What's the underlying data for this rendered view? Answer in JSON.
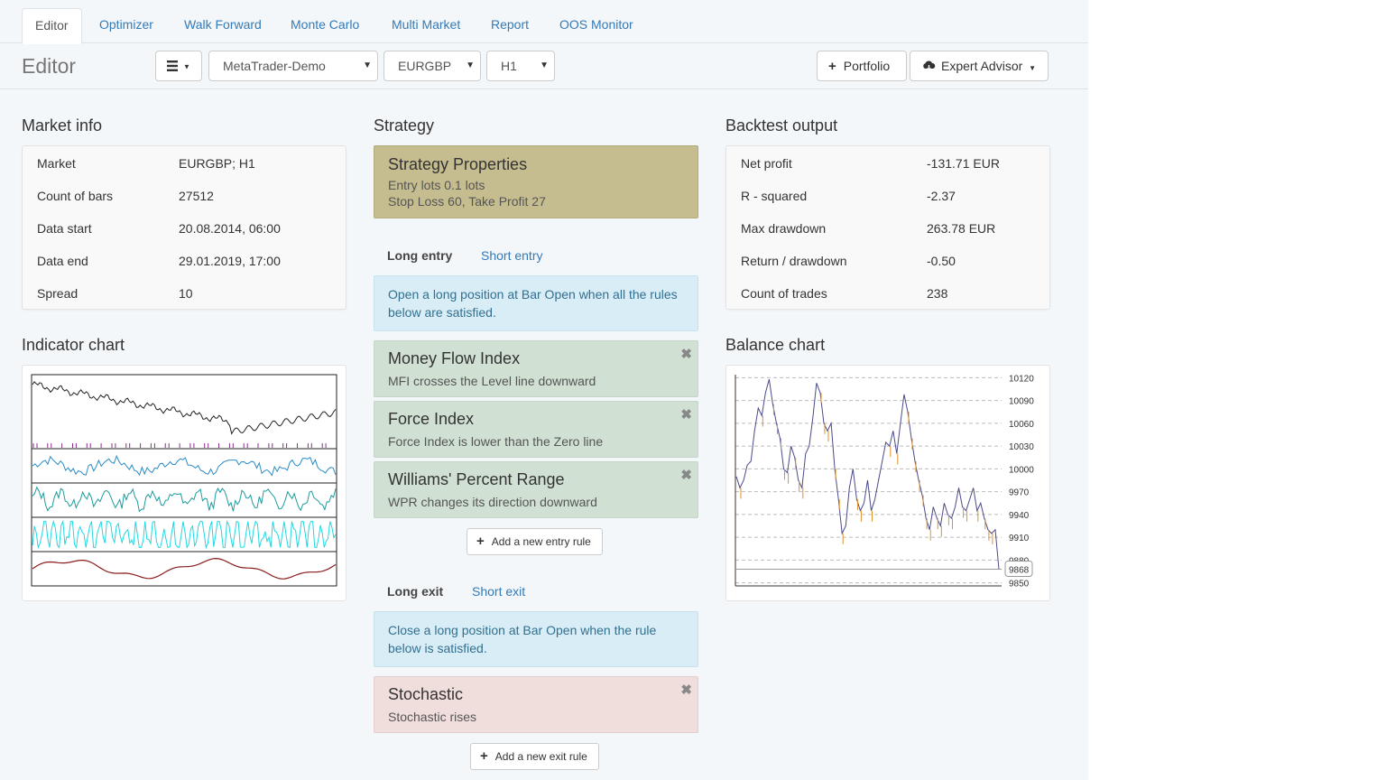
{
  "tabs": [
    {
      "label": "Editor",
      "active": true
    },
    {
      "label": "Optimizer"
    },
    {
      "label": "Walk Forward"
    },
    {
      "label": "Monte Carlo"
    },
    {
      "label": "Multi Market"
    },
    {
      "label": "Report"
    },
    {
      "label": "OOS Monitor"
    }
  ],
  "toolbar": {
    "title": "Editor",
    "menu_icon": "hamburger-icon",
    "account": "MetaTrader-Demo",
    "symbol": "EURGBP",
    "period": "H1",
    "portfolio_label": "Portfolio",
    "ea_label": "Expert Advisor"
  },
  "market_info": {
    "title": "Market info",
    "rows": [
      {
        "k": "Market",
        "v": "EURGBP; H1"
      },
      {
        "k": "Count of bars",
        "v": "27512"
      },
      {
        "k": "Data start",
        "v": "20.08.2014, 06:00"
      },
      {
        "k": "Data end",
        "v": "29.01.2019, 17:00"
      },
      {
        "k": "Spread",
        "v": "10"
      }
    ]
  },
  "indicator_chart": {
    "title": "Indicator chart"
  },
  "strategy": {
    "title": "Strategy",
    "props_title": "Strategy Properties",
    "props_line1": "Entry lots 0.1 lots",
    "props_line2": "Stop Loss 60, Take Profit 27",
    "entry_tabs": {
      "long": "Long entry",
      "short": "Short entry"
    },
    "entry_info": "Open a long position at Bar Open when all the rules below are satisfied.",
    "entry_rules": [
      {
        "title": "Money Flow Index",
        "desc": "MFI crosses the Level line downward"
      },
      {
        "title": "Force Index",
        "desc": "Force Index is lower than the Zero line"
      },
      {
        "title": "Williams' Percent Range",
        "desc": "WPR changes its direction downward"
      }
    ],
    "add_entry": "Add a new entry rule",
    "exit_tabs": {
      "long": "Long exit",
      "short": "Short exit"
    },
    "exit_info": "Close a long position at Bar Open when the rule below is satisfied.",
    "exit_rules": [
      {
        "title": "Stochastic",
        "desc": "Stochastic rises"
      }
    ],
    "add_exit": "Add a new exit rule",
    "remove_symbol": "✖"
  },
  "backtest": {
    "title": "Backtest output",
    "rows": [
      {
        "k": "Net profit",
        "v": "-131.71 EUR"
      },
      {
        "k": "R - squared",
        "v": "-2.37"
      },
      {
        "k": "Max drawdown",
        "v": "263.78 EUR"
      },
      {
        "k": "Return / drawdown",
        "v": "-0.50"
      },
      {
        "k": "Count of trades",
        "v": "238"
      }
    ]
  },
  "balance_chart": {
    "title": "Balance chart"
  },
  "chart_data": {
    "type": "line",
    "title": "Balance chart",
    "y_ticks": [
      10120,
      10090,
      10060,
      10030,
      10000,
      9970,
      9940,
      9910,
      9880,
      9850
    ],
    "ylim": [
      9846,
      10124
    ],
    "last_value_label": "9868",
    "grid": true,
    "series": [
      {
        "color": "#4a4a8a",
        "values": [
          9990,
          9975,
          9985,
          10005,
          10010,
          10050,
          10080,
          10070,
          10100,
          10118,
          10085,
          10060,
          10040,
          10000,
          9995,
          10030,
          10015,
          9985,
          9975,
          10020,
          10030,
          10068,
          10113,
          10100,
          10060,
          10050,
          10060,
          10000,
          9960,
          9915,
          9925,
          9975,
          10000,
          9960,
          9945,
          9955,
          9985,
          9945,
          9960,
          9985,
          10010,
          10035,
          10030,
          10050,
          10020,
          10060,
          10098,
          10075,
          10040,
          10010,
          9985,
          9965,
          9935,
          9920,
          9950,
          9935,
          9925,
          9955,
          9940,
          9935,
          9950,
          9975,
          9950,
          9945,
          9960,
          9975,
          9945,
          9955,
          9935,
          9920,
          9915,
          9920,
          9868
        ]
      },
      {
        "color": "#e0912a",
        "values": []
      }
    ]
  }
}
